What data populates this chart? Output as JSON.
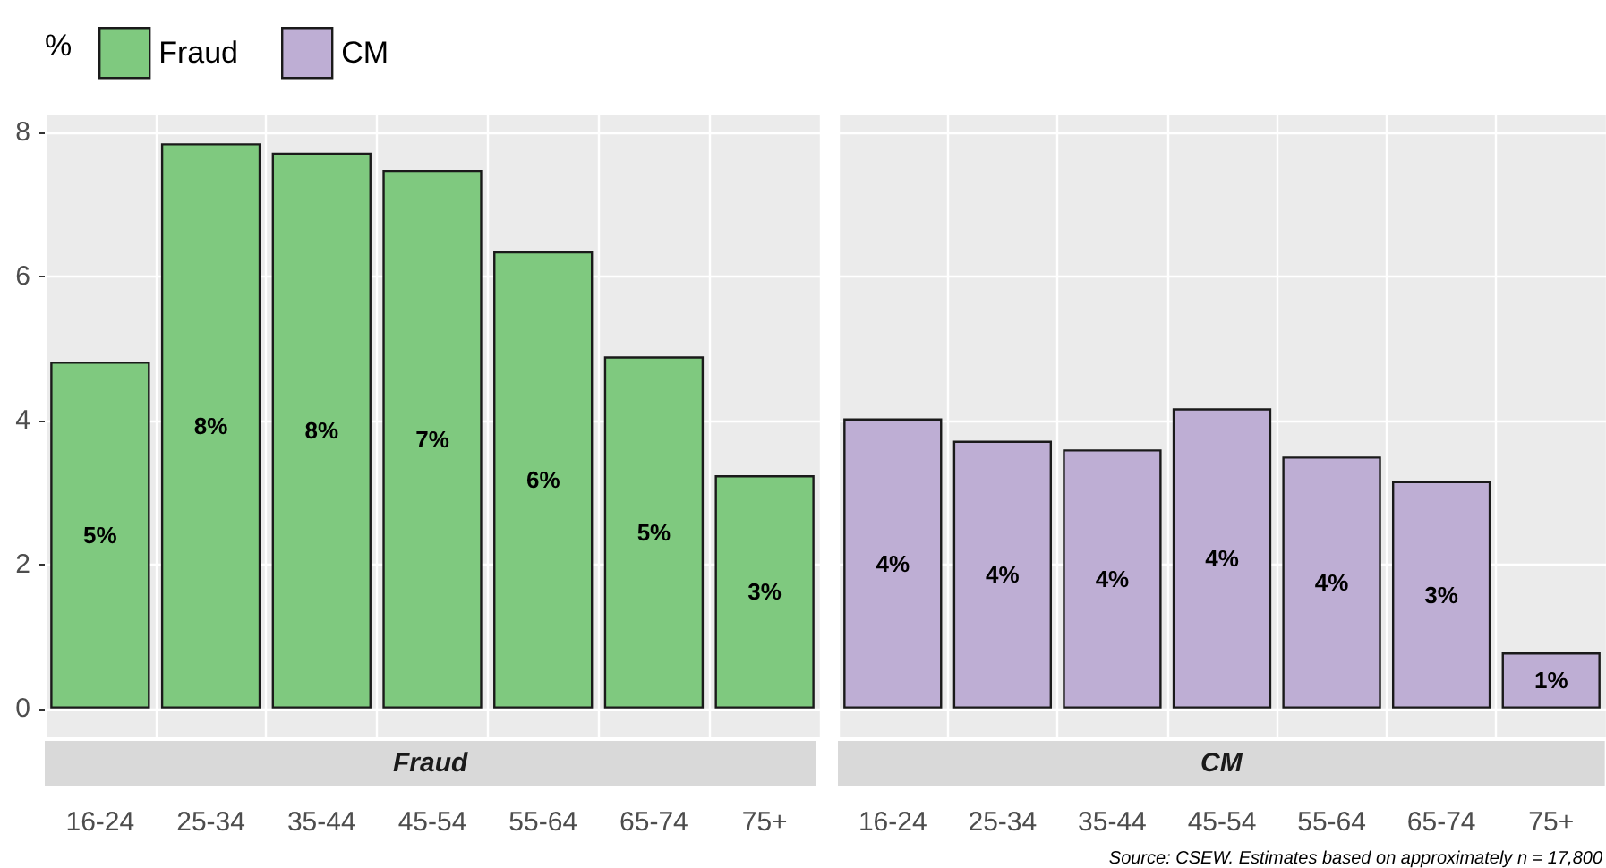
{
  "chart_data": [
    {
      "type": "bar",
      "title": "Fraud",
      "legend_title": "%",
      "categories": [
        "16-24",
        "25-34",
        "35-44",
        "45-54",
        "55-64",
        "65-74",
        "75+"
      ],
      "series": [
        {
          "name": "Fraud",
          "color": "#7fc97f",
          "values": [
            4.82,
            7.85,
            7.72,
            7.48,
            6.35,
            4.89,
            3.24
          ],
          "value_labels": [
            "5%",
            "8%",
            "8%",
            "7%",
            "6%",
            "5%",
            "3%"
          ]
        }
      ],
      "ylim": [
        -0.4,
        8.25
      ],
      "yticks": [
        0,
        2,
        4,
        6,
        8
      ],
      "grid": true,
      "legend": "top left"
    },
    {
      "type": "bar",
      "title": "CM",
      "categories": [
        "16-24",
        "25-34",
        "35-44",
        "45-54",
        "55-64",
        "65-74",
        "75+"
      ],
      "series": [
        {
          "name": "CM",
          "color": "#beaed4",
          "values": [
            4.03,
            3.72,
            3.6,
            4.17,
            3.5,
            3.16,
            0.78
          ],
          "value_labels": [
            "4%",
            "4%",
            "4%",
            "4%",
            "4%",
            "3%",
            "1%"
          ]
        }
      ],
      "ylim": [
        -0.4,
        8.25
      ],
      "yticks": [
        0,
        2,
        4,
        6,
        8
      ],
      "grid": true,
      "legend": "top left",
      "tick_labels": "x",
      "annotations": [
        "Source: CSEW. Estimates based on approximately n = 17,800"
      ]
    }
  ]
}
